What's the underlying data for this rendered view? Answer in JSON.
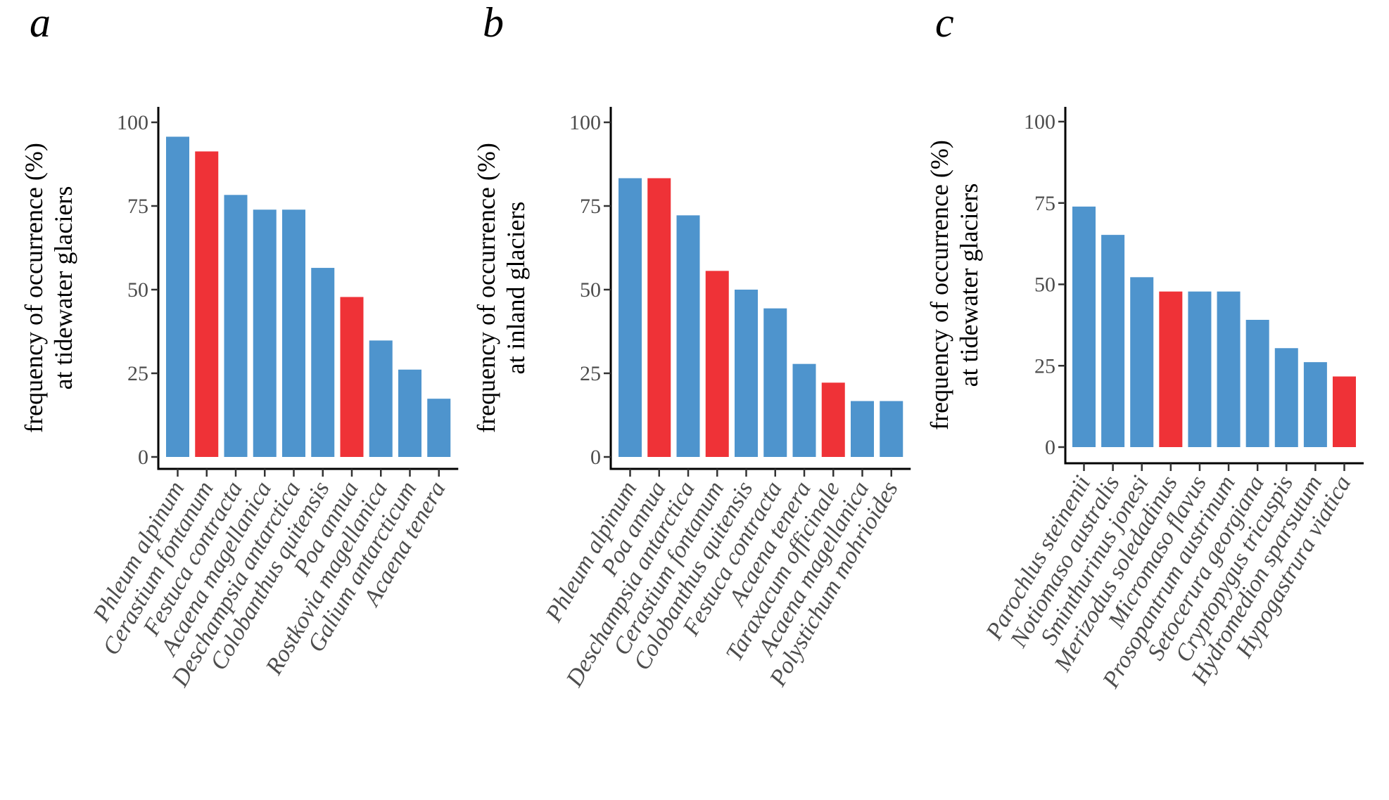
{
  "chart_data": [
    {
      "type": "bar",
      "panel": "a",
      "ylabel": [
        "frequency of occurrence (%)",
        "at tidewater glaciers"
      ],
      "ylim": [
        0,
        105
      ],
      "yticks": [
        0,
        25,
        50,
        75,
        100
      ],
      "categories": [
        "Phleum alpinum",
        "Cerastium fontanum",
        "Festuca contracta",
        "Acaena magellanica",
        "Deschampsia antarctica",
        "Colobanthus quitensis",
        "Poa annua",
        "Rostkovia magellanica",
        "Galium antarcticum",
        "Acaena tenera"
      ],
      "values": [
        95.7,
        91.3,
        78.3,
        73.9,
        73.9,
        56.5,
        47.8,
        34.8,
        26.1,
        17.4
      ],
      "colors": [
        "#4e94cd",
        "#ef3237",
        "#4e94cd",
        "#4e94cd",
        "#4e94cd",
        "#4e94cd",
        "#ef3237",
        "#4e94cd",
        "#4e94cd",
        "#4e94cd"
      ],
      "grid": false
    },
    {
      "type": "bar",
      "panel": "b",
      "ylabel": [
        "frequency of occurrence (%)",
        "at inland glaciers"
      ],
      "ylim": [
        0,
        105
      ],
      "yticks": [
        0,
        25,
        50,
        75,
        100
      ],
      "categories": [
        "Phleum alpinum",
        "Poa annua",
        "Deschampsia antarctica",
        "Cerastium fontanum",
        "Colobanthus quitensis",
        "Festuca contracta",
        "Acaena tenera",
        "Taraxacum officinale",
        "Acaena magellanica",
        "Polystichum mohrioides"
      ],
      "values": [
        83.3,
        83.3,
        72.2,
        55.6,
        50.0,
        44.4,
        27.8,
        22.2,
        16.7,
        16.7
      ],
      "colors": [
        "#4e94cd",
        "#ef3237",
        "#4e94cd",
        "#ef3237",
        "#4e94cd",
        "#4e94cd",
        "#4e94cd",
        "#ef3237",
        "#4e94cd",
        "#4e94cd"
      ],
      "grid": false
    },
    {
      "type": "bar",
      "panel": "c",
      "ylabel": [
        "frequency of occurrence (%)",
        "at tidewater glaciers"
      ],
      "ylim": [
        -5,
        105
      ],
      "yticks": [
        0,
        25,
        50,
        75,
        100
      ],
      "categories": [
        "Parochlus steinenii",
        "Notiomaso australis",
        "Sminthurinus jonesi",
        "Merizodus soledadinus",
        "Micromaso flavus",
        "Prosopantrum austrinum",
        "Setocerura georgiana",
        "Cryptopygus tricuspis",
        "Hydromedion sparsutum",
        "Hypogastrura viatica"
      ],
      "values": [
        73.9,
        65.2,
        52.2,
        47.8,
        47.8,
        47.8,
        39.1,
        30.4,
        26.1,
        21.7
      ],
      "colors": [
        "#4e94cd",
        "#4e94cd",
        "#4e94cd",
        "#ef3237",
        "#4e94cd",
        "#4e94cd",
        "#4e94cd",
        "#4e94cd",
        "#4e94cd",
        "#ef3237"
      ],
      "grid": false
    }
  ]
}
